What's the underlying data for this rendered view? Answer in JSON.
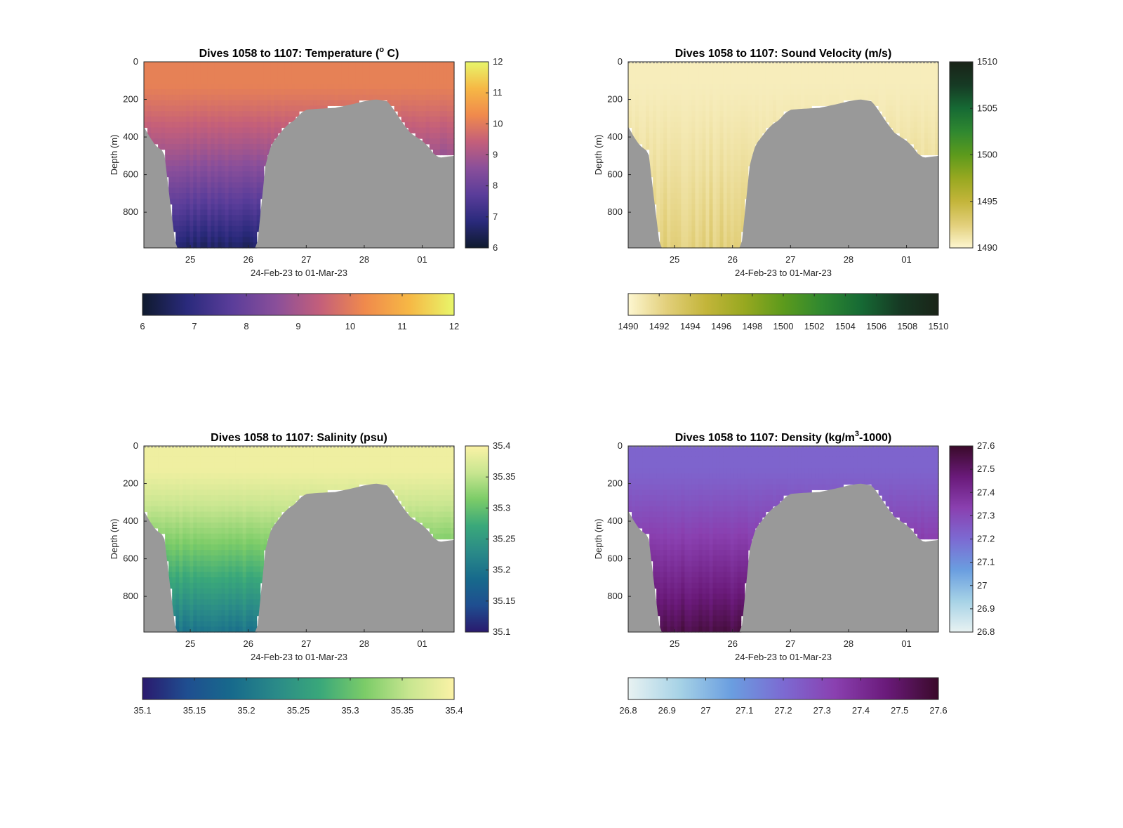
{
  "figure": {
    "background": "#ffffff",
    "land_color": "#999999"
  },
  "chart_data": [
    {
      "type": "heatmap",
      "title": "Dives 1058 to 1107: Temperature (° C)",
      "title_main": "Dives 1058 to 1107: Temperature (",
      "title_sup": "o",
      "title_end": " C)",
      "xlabel": "24-Feb-23 to 01-Mar-23",
      "ylabel": "Depth (m)",
      "xticks": [
        "25",
        "26",
        "27",
        "28",
        "01"
      ],
      "xlim_days": [
        24.2,
        29.55
      ],
      "yticks": [
        "0",
        "200",
        "400",
        "600",
        "800"
      ],
      "ylim": [
        0,
        990
      ],
      "colorbar_side": {
        "ticks": [
          "12",
          "11",
          "10",
          "9",
          "8",
          "7",
          "6"
        ],
        "range": [
          6,
          12
        ]
      },
      "colorbar_bottom": {
        "ticks": [
          "6",
          "7",
          "8",
          "9",
          "10",
          "11",
          "12"
        ],
        "range": [
          6,
          12
        ]
      },
      "colormap": [
        "#0f1a2e",
        "#2a2a7c",
        "#5a3d9a",
        "#8a4f9a",
        "#c45f7a",
        "#f08a4c",
        "#f6b845",
        "#e8f66a"
      ],
      "surface_value": 10.1,
      "deep_value": 6.6
    },
    {
      "type": "heatmap",
      "title": "Dives 1058 to 1107: Sound Velocity (m/s)",
      "title_main": "Dives 1058 to 1107: Sound Velocity (m/s)",
      "title_sup": "",
      "title_end": "",
      "xlabel": "24-Feb-23 to 01-Mar-23",
      "ylabel": "Depth (m)",
      "xticks": [
        "25",
        "26",
        "27",
        "28",
        "01"
      ],
      "xlim_days": [
        24.2,
        29.55
      ],
      "yticks": [
        "0",
        "200",
        "400",
        "600",
        "800"
      ],
      "ylim": [
        0,
        990
      ],
      "colorbar_side": {
        "ticks": [
          "1510",
          "1505",
          "1500",
          "1495",
          "1490"
        ],
        "range": [
          1490,
          1510
        ]
      },
      "colorbar_bottom": {
        "ticks": [
          "1490",
          "1492",
          "1494",
          "1496",
          "1498",
          "1500",
          "1502",
          "1504",
          "1506",
          "1508",
          "1510"
        ],
        "range": [
          1490,
          1510
        ]
      },
      "colormap": [
        "#fdf6d0",
        "#e2cf7a",
        "#c3b53a",
        "#97a820",
        "#5c9a1c",
        "#2f8830",
        "#166a34",
        "#163a24",
        "#1a2418"
      ],
      "surface_value": 1490.6,
      "deep_value": 1492.5
    },
    {
      "type": "heatmap",
      "title": "Dives 1058 to 1107: Salinity (psu)",
      "title_main": "Dives 1058 to 1107: Salinity (psu)",
      "title_sup": "",
      "title_end": "",
      "xlabel": "24-Feb-23 to 01-Mar-23",
      "ylabel": "Depth (m)",
      "xticks": [
        "25",
        "26",
        "27",
        "28",
        "01"
      ],
      "xlim_days": [
        24.2,
        29.55
      ],
      "yticks": [
        "0",
        "200",
        "400",
        "600",
        "800"
      ],
      "ylim": [
        0,
        990
      ],
      "colorbar_side": {
        "ticks": [
          "35.4",
          "35.35",
          "35.3",
          "35.25",
          "35.2",
          "35.15",
          "35.1"
        ],
        "range": [
          35.1,
          35.4
        ]
      },
      "colorbar_bottom": {
        "ticks": [
          "35.1",
          "35.15",
          "35.2",
          "35.25",
          "35.3",
          "35.35",
          "35.4"
        ],
        "range": [
          35.1,
          35.4
        ]
      },
      "colormap": [
        "#2a1a6e",
        "#1f4e90",
        "#176a8c",
        "#2a8a88",
        "#3aa87a",
        "#7ccc68",
        "#c8e690",
        "#fbf2a6"
      ],
      "surface_value": 35.39,
      "deep_value": 35.2
    },
    {
      "type": "heatmap",
      "title": "Dives 1058 to 1107: Density (kg/m³-1000)",
      "title_main": "Dives 1058 to 1107: Density (kg/m",
      "title_sup": "3",
      "title_end": "-1000)",
      "xlabel": "24-Feb-23 to 01-Mar-23",
      "ylabel": "Depth (m)",
      "xticks": [
        "25",
        "26",
        "27",
        "28",
        "01"
      ],
      "xlim_days": [
        24.2,
        29.55
      ],
      "yticks": [
        "0",
        "200",
        "400",
        "600",
        "800"
      ],
      "ylim": [
        0,
        990
      ],
      "colorbar_side": {
        "ticks": [
          "27.6",
          "27.5",
          "27.4",
          "27.3",
          "27.2",
          "27.1",
          "27",
          "26.9",
          "26.8"
        ],
        "range": [
          26.8,
          27.6
        ]
      },
      "colorbar_bottom": {
        "ticks": [
          "26.8",
          "26.9",
          "27",
          "27.1",
          "27.2",
          "27.3",
          "27.4",
          "27.5",
          "27.6"
        ],
        "range": [
          26.8,
          27.6
        ]
      },
      "colormap": [
        "#e8f2f2",
        "#a6d2e6",
        "#6a9ee0",
        "#7c6ad2",
        "#8a40b0",
        "#6a1a7a",
        "#3a0a2a"
      ],
      "surface_value": 27.22,
      "deep_value": 27.55
    }
  ],
  "bathymetry": {
    "x_days": [
      24.2,
      24.3,
      24.4,
      24.55,
      24.65,
      24.75,
      25.0,
      25.3,
      25.6,
      25.9,
      26.15,
      26.3,
      26.4,
      26.5,
      26.6,
      26.7,
      26.8,
      26.9,
      27.0,
      27.2,
      27.5,
      27.8,
      28.0,
      28.2,
      28.4,
      28.5,
      28.65,
      28.8,
      29.0,
      29.1,
      29.2,
      29.3,
      29.55
    ],
    "floor_depth_m": [
      345,
      400,
      445,
      480,
      740,
      990,
      990,
      990,
      990,
      990,
      990,
      540,
      440,
      400,
      360,
      330,
      310,
      275,
      255,
      250,
      245,
      225,
      210,
      200,
      210,
      250,
      320,
      380,
      420,
      450,
      490,
      510,
      500
    ]
  }
}
